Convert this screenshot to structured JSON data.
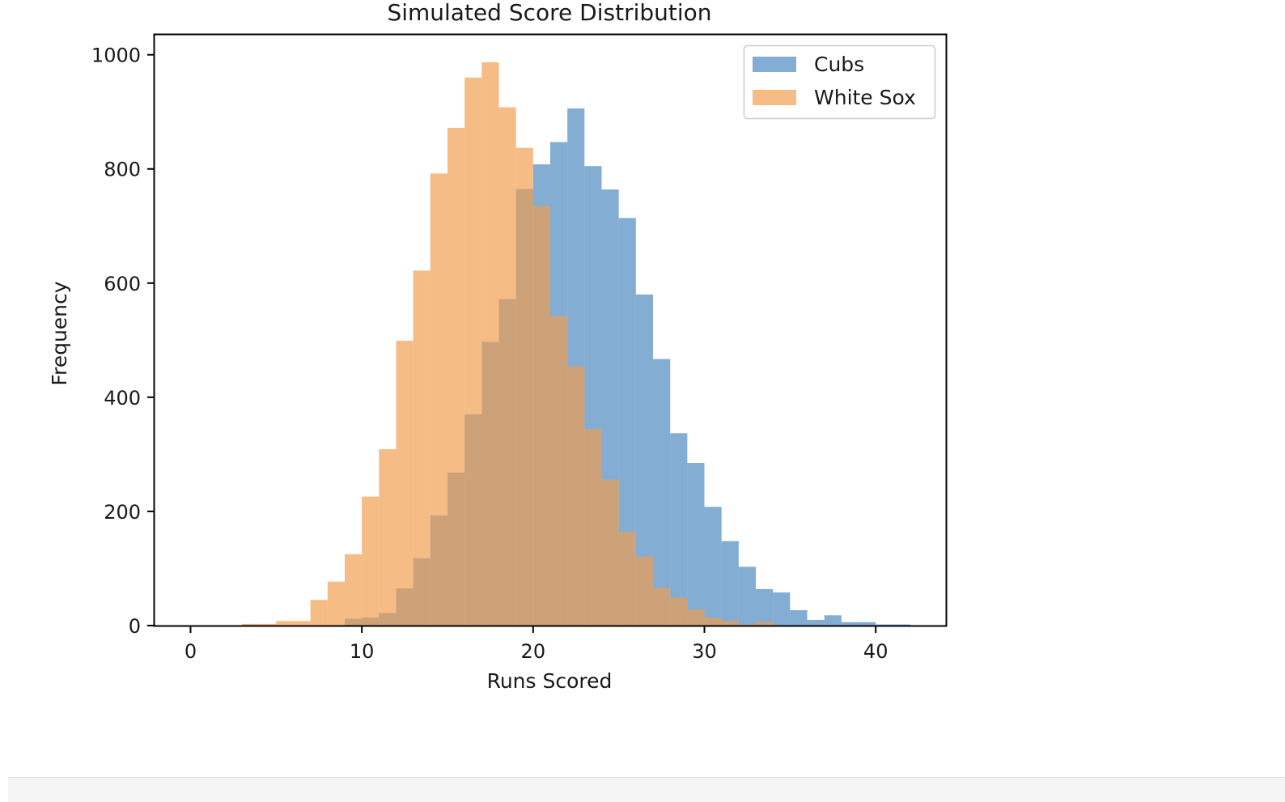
{
  "chart_data": {
    "type": "histogram",
    "title": "Simulated Score Distribution",
    "xlabel": "Runs Scored",
    "ylabel": "Frequency",
    "xlim": [
      -2.1,
      44.1
    ],
    "ylim": [
      0,
      1035
    ],
    "xticks": [
      0,
      10,
      20,
      30,
      40
    ],
    "yticks": [
      0,
      200,
      400,
      600,
      800,
      1000
    ],
    "bin_width": 1,
    "legend": {
      "position": "top-right"
    },
    "grid": false,
    "series": [
      {
        "name": "Cubs",
        "color": "#4a86be",
        "opacity": 0.68,
        "bins_start": [
          9,
          10,
          11,
          12,
          13,
          14,
          15,
          16,
          17,
          18,
          19,
          20,
          21,
          22,
          23,
          24,
          25,
          26,
          27,
          28,
          29,
          30,
          31,
          32,
          33,
          34,
          35,
          36,
          37,
          38,
          39,
          40,
          41
        ],
        "counts": [
          12,
          14,
          22,
          65,
          118,
          193,
          268,
          370,
          497,
          572,
          765,
          808,
          847,
          906,
          805,
          764,
          714,
          580,
          467,
          337,
          285,
          208,
          148,
          103,
          64,
          58,
          27,
          10,
          18,
          6,
          6,
          2,
          2
        ]
      },
      {
        "name": "White Sox",
        "color": "#f19c4c",
        "opacity": 0.68,
        "bins_start": [
          3,
          4,
          5,
          6,
          7,
          8,
          9,
          10,
          11,
          12,
          13,
          14,
          15,
          16,
          17,
          18,
          19,
          20,
          21,
          22,
          23,
          24,
          25,
          26,
          27,
          28,
          29,
          30,
          31,
          32,
          33
        ],
        "counts": [
          3,
          3,
          8,
          8,
          45,
          77,
          125,
          226,
          309,
          499,
          622,
          792,
          872,
          960,
          987,
          908,
          837,
          735,
          542,
          454,
          344,
          256,
          164,
          121,
          66,
          49,
          28,
          14,
          8,
          2,
          6
        ]
      }
    ]
  }
}
